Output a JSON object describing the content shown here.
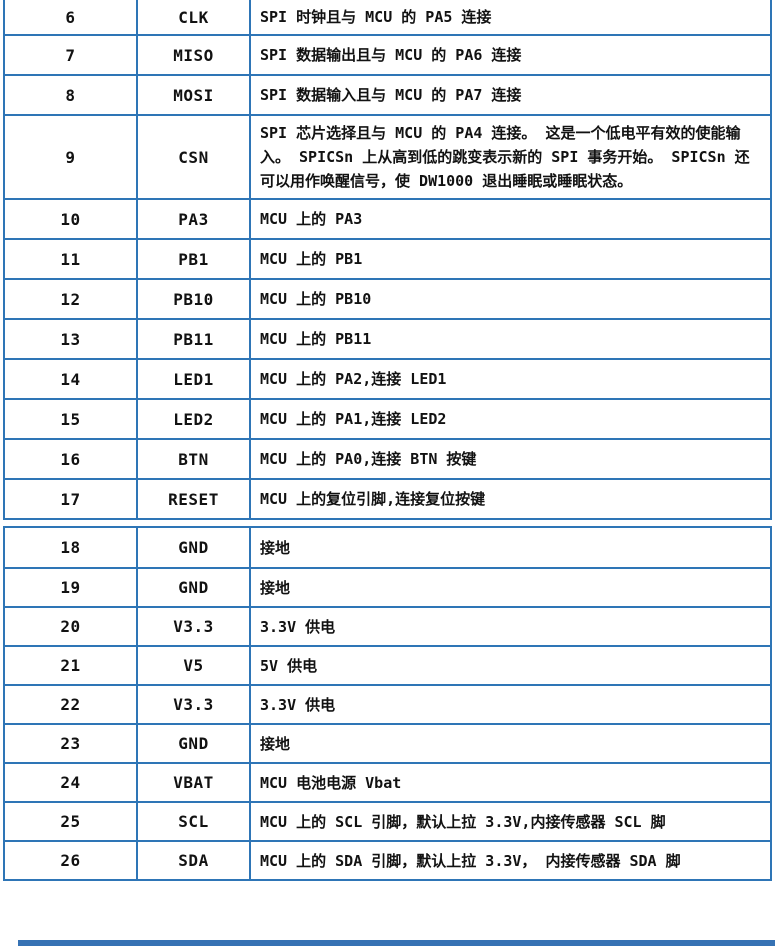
{
  "table": {
    "border_color": "#2e75b6",
    "columns": [
      "pin_number",
      "pin_name",
      "description"
    ],
    "sections": [
      {
        "rows": [
          {
            "pin": "6",
            "name": "CLK",
            "desc": "SPI 时钟且与 MCU 的 PA5 连接"
          },
          {
            "pin": "7",
            "name": "MISO",
            "desc": "SPI 数据输出且与 MCU 的 PA6 连接"
          },
          {
            "pin": "8",
            "name": "MOSI",
            "desc": "SPI 数据输入且与 MCU 的 PA7 连接"
          },
          {
            "pin": "9",
            "name": "CSN",
            "desc": "SPI 芯片选择且与 MCU 的 PA4 连接。 这是一个低电平有效的使能输入。 SPICSn 上从高到低的跳变表示新的 SPI 事务开始。 SPICSn 还可以用作唤醒信号，使 DW1000 退出睡眠或睡眠状态。"
          },
          {
            "pin": "10",
            "name": "PA3",
            "desc": "MCU 上的 PA3"
          },
          {
            "pin": "11",
            "name": "PB1",
            "desc": "MCU 上的 PB1"
          },
          {
            "pin": "12",
            "name": "PB10",
            "desc": "MCU 上的 PB10"
          },
          {
            "pin": "13",
            "name": "PB11",
            "desc": "MCU 上的 PB11"
          },
          {
            "pin": "14",
            "name": "LED1",
            "desc": "MCU 上的 PA2,连接 LED1"
          },
          {
            "pin": "15",
            "name": "LED2",
            "desc": "MCU 上的 PA1,连接 LED2"
          },
          {
            "pin": "16",
            "name": "BTN",
            "desc": "MCU 上的 PA0,连接 BTN 按键"
          },
          {
            "pin": "17",
            "name": "RESET",
            "desc": "MCU 上的复位引脚,连接复位按键"
          }
        ]
      },
      {
        "rows": [
          {
            "pin": "18",
            "name": "GND",
            "desc": "接地"
          },
          {
            "pin": "19",
            "name": "GND",
            "desc": "接地"
          },
          {
            "pin": "20",
            "name": "V3.3",
            "desc": "3.3V 供电"
          },
          {
            "pin": "21",
            "name": "V5",
            "desc": "5V 供电"
          },
          {
            "pin": "22",
            "name": "V3.3",
            "desc": "3.3V 供电"
          },
          {
            "pin": "23",
            "name": "GND",
            "desc": "接地"
          },
          {
            "pin": "24",
            "name": "VBAT",
            "desc": "MCU 电池电源 Vbat"
          },
          {
            "pin": "25",
            "name": "SCL",
            "desc": "MCU 上的 SCL 引脚，默认上拉 3.3V,内接传感器 SCL 脚"
          },
          {
            "pin": "26",
            "name": "SDA",
            "desc": "MCU 上的 SDA 引脚，默认上拉 3.3V， 内接传感器 SDA 脚"
          }
        ]
      }
    ]
  },
  "next_table_bar": {
    "color": "#3672b4"
  }
}
